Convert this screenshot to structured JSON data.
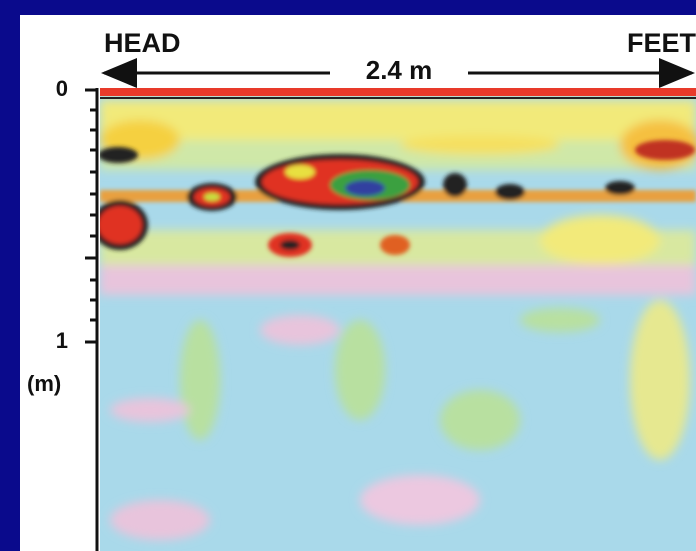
{
  "figure": {
    "left_label": "HEAD",
    "right_label": "FEET",
    "width_label": "2.4 m",
    "depth_ticks": [
      "0",
      "1"
    ],
    "depth_unit": "(m)"
  }
}
